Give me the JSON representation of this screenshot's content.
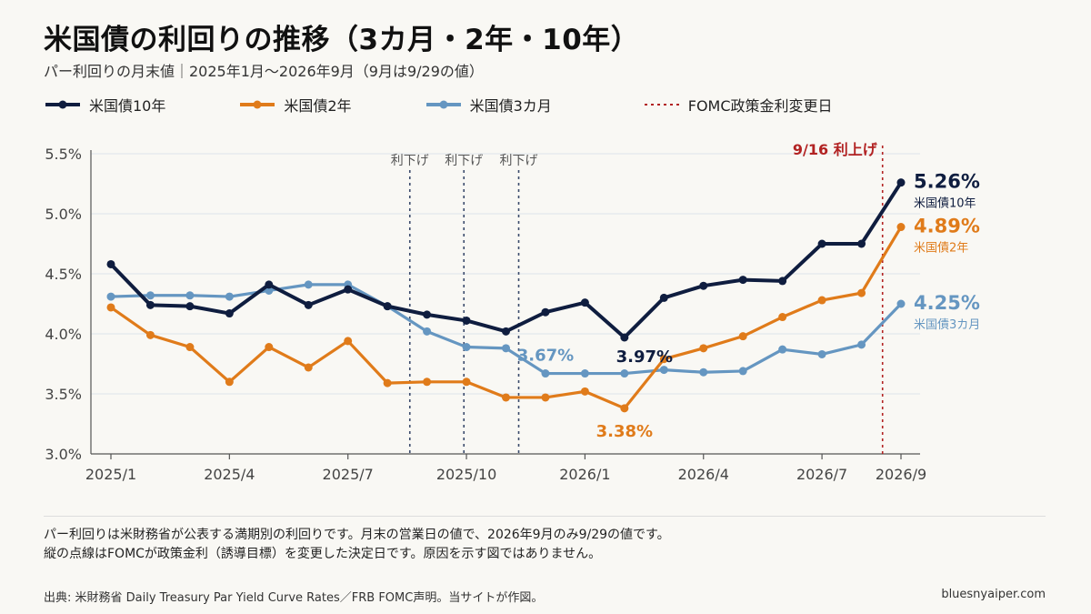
{
  "title": "米国債の利回りの推移（3カ月・2年・10年）",
  "subtitle": "パー利回りの月末値｜2025年1月〜2026年9月（9月は9/29の値）",
  "legend": [
    {
      "label": "米国債10年",
      "color": "#0f1d3f",
      "icon": "line-marker"
    },
    {
      "label": "米国債2年",
      "color": "#e07b1a",
      "icon": "line-marker"
    },
    {
      "label": "米国債3カ月",
      "color": "#6596c1",
      "icon": "line-marker"
    },
    {
      "label": "FOMC政策金利変更日",
      "color": "#b22222",
      "icon": "dotted-line"
    }
  ],
  "notes": [
    "パー利回りは米財務省が公表する満期別の利回りです。月末の営業日の値で、2026年9月のみ9/29の値です。",
    "縦の点線はFOMCが政策金利（誘導目標）を変更した決定日です。原因を示す図ではありません。"
  ],
  "footer": {
    "source": "出典: 米財務省 Daily Treasury Par Yield Curve Rates／FRB FOMC声明。当サイトが作図。",
    "site": "bluesnyaiper.com"
  },
  "chart_data": {
    "type": "line",
    "x": [
      "2025/1",
      "2025/2",
      "2025/3",
      "2025/4",
      "2025/5",
      "2025/6",
      "2025/7",
      "2025/8",
      "2025/9",
      "2025/10",
      "2025/11",
      "2025/12",
      "2026/1",
      "2026/2",
      "2026/3",
      "2026/4",
      "2026/5",
      "2026/6",
      "2026/7",
      "2026/8",
      "2026/9"
    ],
    "x_tick_labels": [
      "2025/1",
      "2025/4",
      "2025/7",
      "2025/10",
      "2026/1",
      "2026/4",
      "2026/7",
      "2026/9"
    ],
    "y_ticks": [
      "3.0%",
      "3.5%",
      "4.0%",
      "4.5%",
      "5.0%",
      "5.5%"
    ],
    "ylim": [
      3.0,
      5.5
    ],
    "grid": "horizontal",
    "series": [
      {
        "name": "米国債3カ月",
        "color": "#6596c1",
        "values": [
          4.31,
          4.32,
          4.32,
          4.31,
          4.36,
          4.41,
          4.41,
          4.23,
          4.02,
          3.89,
          3.88,
          3.67,
          3.67,
          3.67,
          3.7,
          3.68,
          3.69,
          3.87,
          3.83,
          3.91,
          4.25
        ],
        "end_label": "4.25%",
        "end_name": "米国債3カ月"
      },
      {
        "name": "米国債2年",
        "color": "#e07b1a",
        "values": [
          4.22,
          3.99,
          3.89,
          3.6,
          3.89,
          3.72,
          3.94,
          3.59,
          3.6,
          3.6,
          3.47,
          3.47,
          3.52,
          3.38,
          3.79,
          3.88,
          3.98,
          4.14,
          4.28,
          4.34,
          4.89
        ],
        "end_label": "4.89%",
        "end_name": "米国債2年"
      },
      {
        "name": "米国債10年",
        "color": "#0f1d3f",
        "values": [
          4.58,
          4.24,
          4.23,
          4.17,
          4.41,
          4.24,
          4.37,
          4.23,
          4.16,
          4.11,
          4.02,
          4.18,
          4.26,
          3.97,
          4.3,
          4.4,
          4.45,
          4.44,
          4.75,
          4.75,
          5.26
        ],
        "end_label": "5.26%",
        "end_name": "米国債10年"
      }
    ],
    "annotations": [
      {
        "text": "3.67%",
        "series": "米国債3カ月",
        "color": "#6596c1"
      },
      {
        "text": "3.97%",
        "series": "米国債10年",
        "color": "#0f1d3f"
      },
      {
        "text": "3.38%",
        "series": "米国債2年",
        "color": "#e07b1a"
      }
    ],
    "fomc_lines": [
      {
        "date": "2025/9/17",
        "label": "利下げ",
        "color": "#3a4a6b"
      },
      {
        "date": "2025/10/29",
        "label": "利下げ",
        "color": "#3a4a6b"
      },
      {
        "date": "2025/12/10",
        "label": "利下げ",
        "color": "#3a4a6b"
      },
      {
        "date": "2026/9/16",
        "label": "9/16 利上げ",
        "color": "#b22222"
      }
    ]
  }
}
